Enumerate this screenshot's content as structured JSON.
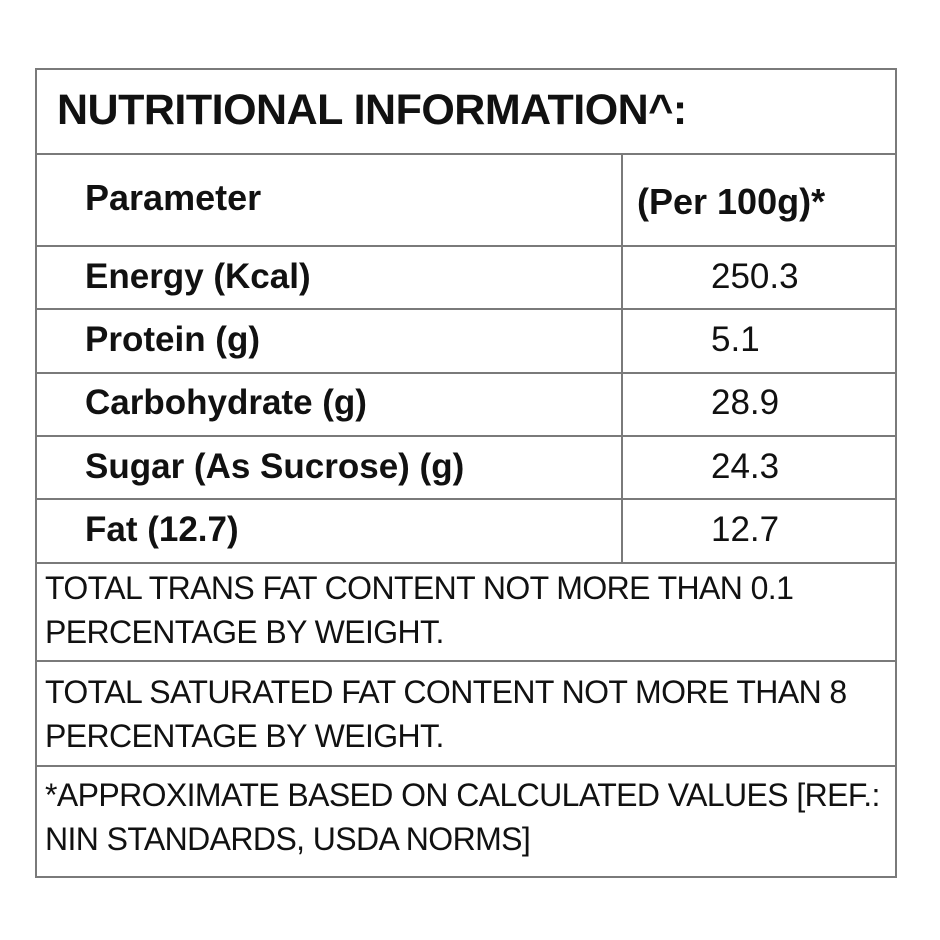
{
  "title": "NUTRITIONAL INFORMATION^:",
  "header": {
    "parameter": "Parameter",
    "per": "(Per 100g)*"
  },
  "rows": [
    {
      "label": "Energy (Kcal)",
      "value": "250.3"
    },
    {
      "label": "Protein (g)",
      "value": "5.1"
    },
    {
      "label": "Carbohydrate (g)",
      "value": "28.9"
    },
    {
      "label": "Sugar (As Sucrose) (g)",
      "value": "24.3"
    },
    {
      "label": "Fat (12.7)",
      "value": "12.7"
    }
  ],
  "notes": [
    "TOTAL TRANS FAT CONTENT NOT MORE THAN 0.1 PERCENTAGE BY WEIGHT.",
    "TOTAL SATURATED FAT CONTENT NOT MORE THAN 8 PERCENTAGE BY WEIGHT.",
    "*APPROXIMATE BASED ON CALCULATED VALUES [REF.: NIN STANDARDS, USDA NORMS]"
  ]
}
